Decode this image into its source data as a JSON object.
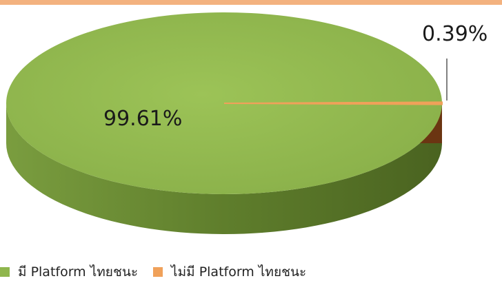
{
  "chart_data": {
    "type": "pie",
    "title": "",
    "slices": [
      {
        "label": "มี Platform ไทยชนะ",
        "value": 99.61,
        "display": "99.61%",
        "color": "#8fb64d"
      },
      {
        "label": "ไม่มี Platform ไทยชนะ",
        "value": 0.39,
        "display": "0.39%",
        "color": "#f0a15a"
      }
    ],
    "legend": "bottom-left",
    "style": "3d"
  }
}
